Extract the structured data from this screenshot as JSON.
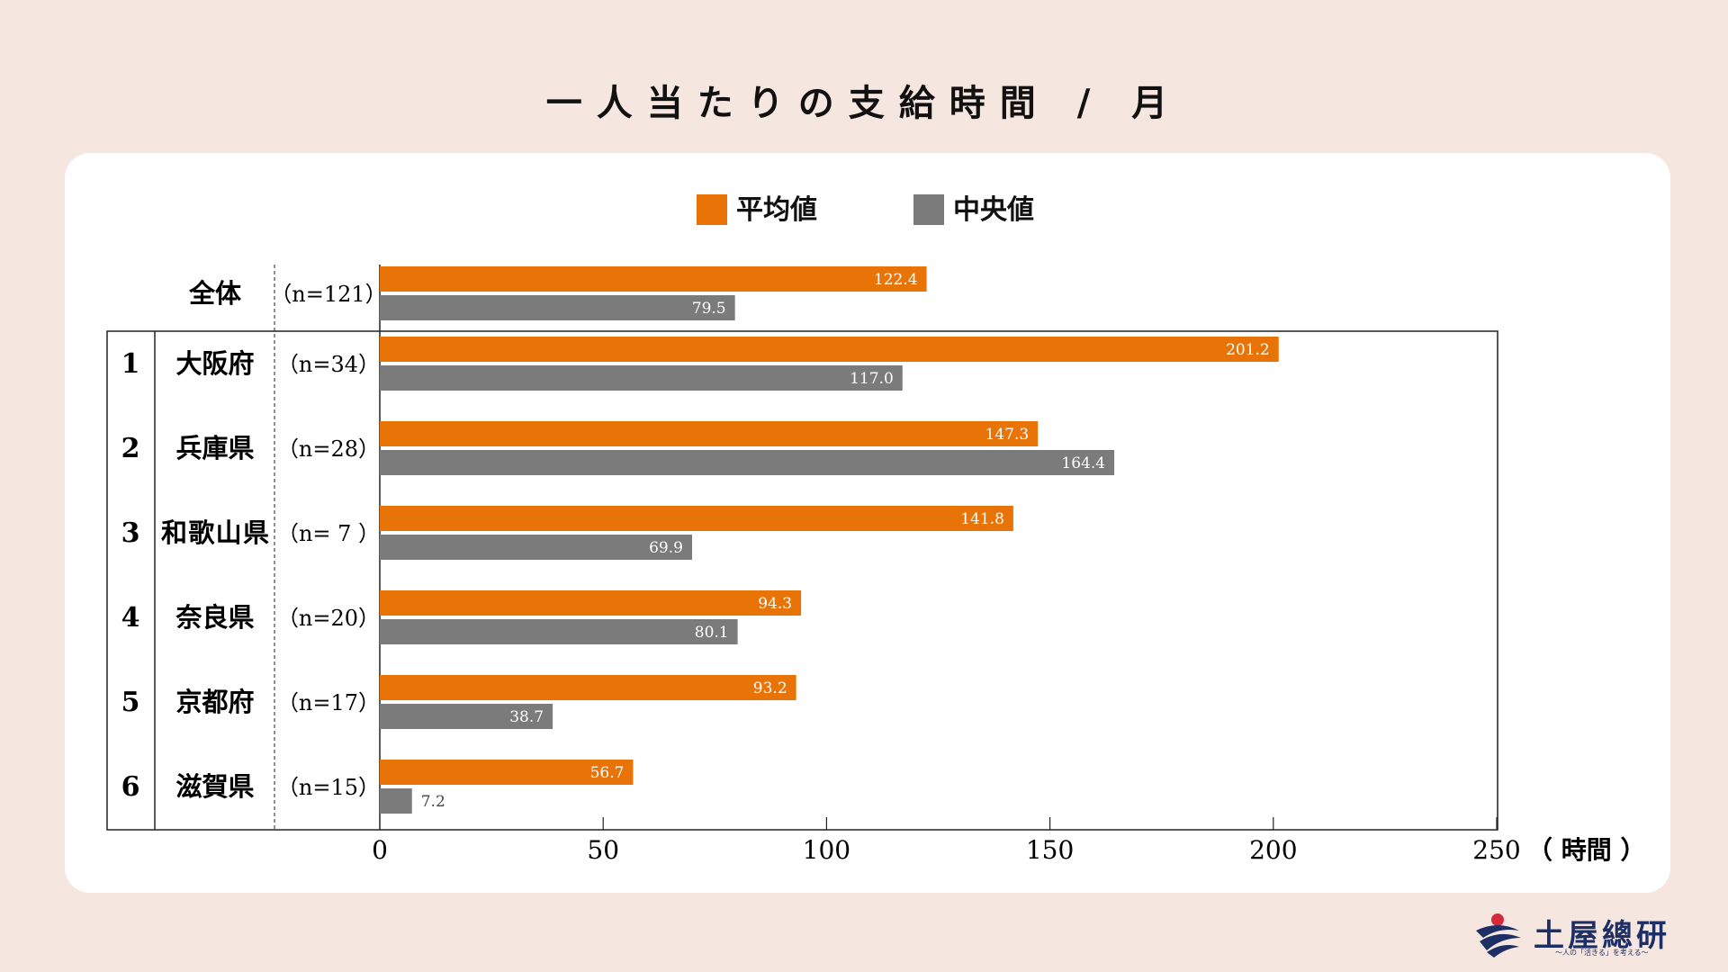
{
  "title": "一人当たりの支給時間 / 月",
  "logo": {
    "name": "土屋總研",
    "tagline": "〜人の「活きる」を考える〜"
  },
  "chart_data": {
    "type": "bar",
    "orientation": "horizontal",
    "title": "一人当たりの支給時間 / 月",
    "xlabel": "（ 時間 ）",
    "xlim": [
      0,
      250
    ],
    "xticks": [
      "0",
      "50",
      "100",
      "150",
      "200",
      "250"
    ],
    "legend_position": "top-center",
    "series": [
      {
        "name": "平均値",
        "color": "#e87306",
        "values": [
          122.4,
          201.2,
          147.3,
          141.8,
          94.3,
          93.2,
          56.7
        ]
      },
      {
        "name": "中央値",
        "color": "#7b7b7b",
        "values": [
          79.5,
          117.0,
          164.4,
          69.9,
          80.1,
          38.7,
          7.2
        ]
      }
    ],
    "value_labels": {
      "平均値": [
        "122.4",
        "201.2",
        "147.3",
        "141.8",
        "94.3",
        "93.2",
        "56.7"
      ],
      "中央値": [
        "79.5",
        "117.0",
        "164.4",
        "69.9",
        "80.1",
        "38.7",
        "7.2"
      ]
    },
    "categories": [
      {
        "rank": "",
        "name": "全体",
        "n": "（n=121）"
      },
      {
        "rank": "1",
        "name": "大阪府",
        "n": "（n=34）"
      },
      {
        "rank": "2",
        "name": "兵庫県",
        "n": "（n=28）"
      },
      {
        "rank": "3",
        "name": "和歌山県",
        "n": "（n= 7 ）"
      },
      {
        "rank": "4",
        "name": "奈良県",
        "n": "（n=20）"
      },
      {
        "rank": "5",
        "name": "京都府",
        "n": "（n=17）"
      },
      {
        "rank": "6",
        "name": "滋賀県",
        "n": "（n=15）"
      }
    ]
  }
}
